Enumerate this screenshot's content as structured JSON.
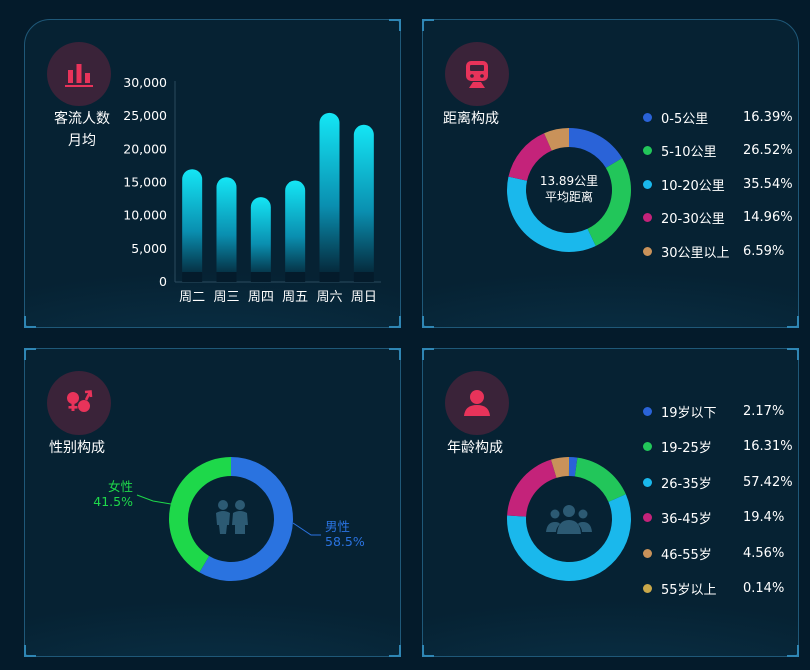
{
  "panels": {
    "passenger": {
      "title_line1": "客流人数",
      "title_line2": "月均"
    },
    "distance": {
      "title": "距离构成",
      "center_line1": "13.89公里",
      "center_line2": "平均距离"
    },
    "gender": {
      "title": "性别构成"
    },
    "age": {
      "title": "年龄构成"
    }
  },
  "chart_data": [
    {
      "type": "bar",
      "categories": [
        "周二",
        "周三",
        "周四",
        "周五",
        "周六",
        "周日"
      ],
      "values": [
        17000,
        15800,
        12800,
        15300,
        25500,
        23700
      ],
      "yticks": [
        "0",
        "5,000",
        "10,000",
        "15,000",
        "20,000",
        "25,000",
        "30,000"
      ],
      "ylim": [
        0,
        30000
      ],
      "color_top": "#14e6f5",
      "color_bottom": "#041b2b"
    },
    {
      "type": "pie",
      "labels": [
        "0-5公里",
        "5-10公里",
        "10-20公里",
        "20-30公里",
        "30公里以上"
      ],
      "values": [
        16.39,
        26.52,
        35.54,
        14.96,
        6.59
      ],
      "display": [
        "16.39%",
        "26.52%",
        "35.54%",
        "14.96%",
        "6.59%"
      ],
      "colors": [
        "#2a63d8",
        "#22c65a",
        "#1ab8ec",
        "#c4237a",
        "#c9925a"
      ]
    },
    {
      "type": "pie",
      "labels": [
        "男性",
        "女性"
      ],
      "display": [
        "58.5%",
        "41.5%"
      ],
      "values": [
        58.5,
        41.5
      ],
      "colors": [
        "#2a73e0",
        "#1ed84a"
      ]
    },
    {
      "type": "pie",
      "labels": [
        "19岁以下",
        "19-25岁",
        "26-35岁",
        "36-45岁",
        "46-55岁",
        "55岁以上"
      ],
      "values": [
        2.17,
        16.31,
        57.42,
        19.4,
        4.56,
        0.14
      ],
      "display": [
        "2.17%",
        "16.31%",
        "57.42%",
        "19.4%",
        "4.56%",
        "0.14%"
      ],
      "colors": [
        "#2a63d8",
        "#22c65a",
        "#1ab8ec",
        "#c4237a",
        "#c9925a",
        "#c9a84a"
      ]
    }
  ]
}
